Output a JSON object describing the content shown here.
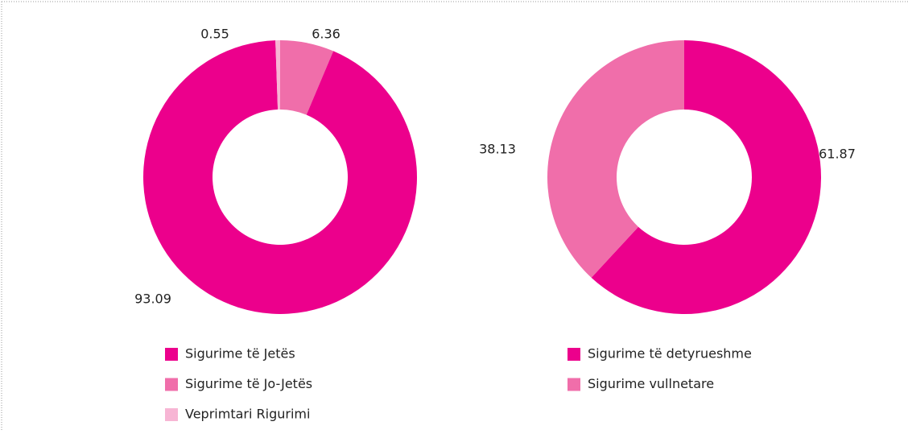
{
  "chart_data": [
    {
      "type": "pie",
      "categories": [
        "Sigurime të Jetës",
        "Sigurime të Jo-Jetës",
        "Veprimtari Rigurimi"
      ],
      "values": [
        93.09,
        6.36,
        0.55
      ],
      "colors": [
        "#ec008c",
        "#f06eaa",
        "#f7b5d4"
      ]
    },
    {
      "type": "pie",
      "categories": [
        "Sigurime të detyrueshme",
        "Sigurime vullnetare"
      ],
      "values": [
        61.87,
        38.13
      ],
      "colors": [
        "#ec008c",
        "#f06eaa"
      ]
    }
  ]
}
